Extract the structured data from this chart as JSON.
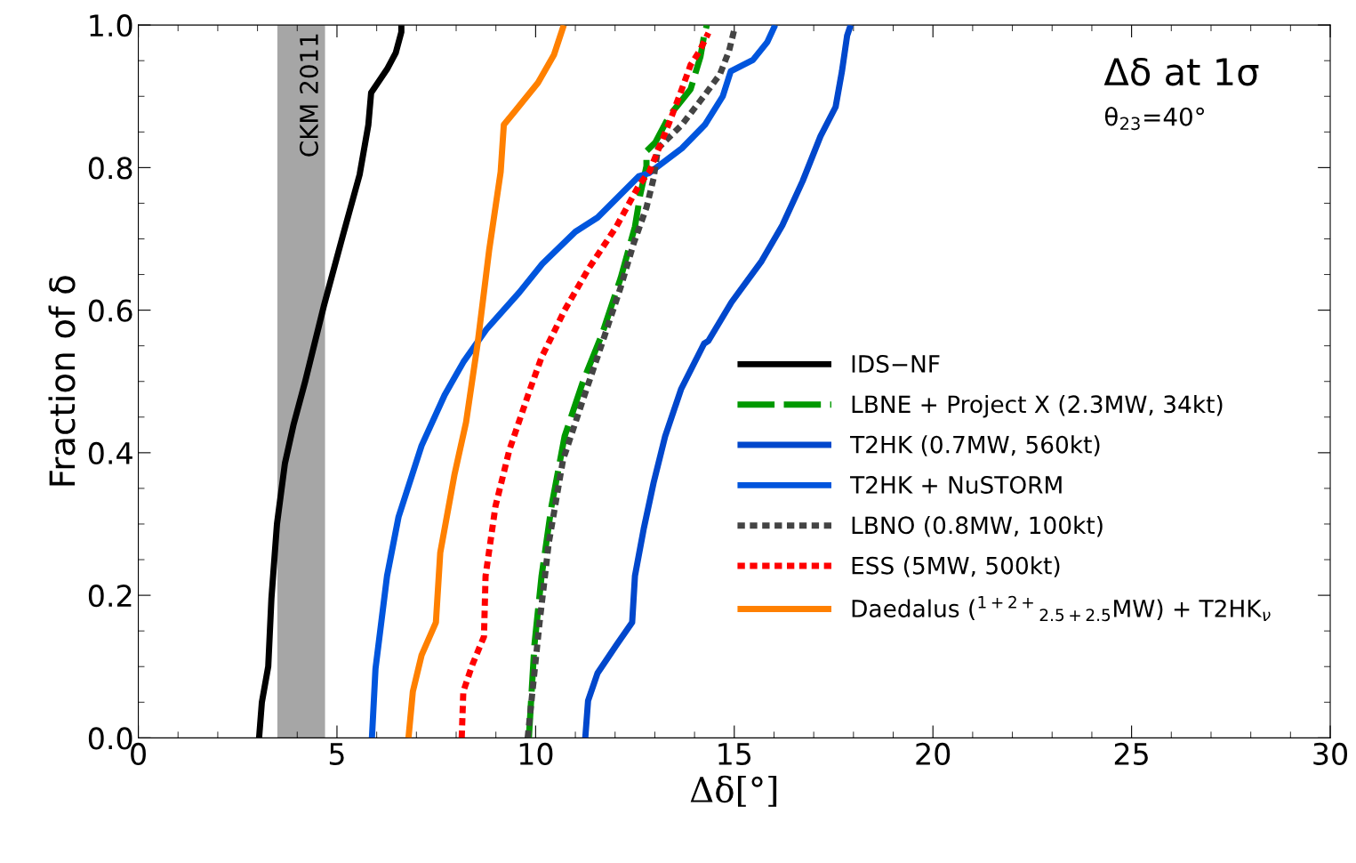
{
  "chart_data": {
    "type": "line",
    "xlabel": "Δδ[°]",
    "ylabel": "Fraction of δ",
    "annotations": [
      "Δδ at 1σ",
      "θ$_{23}$=40°"
    ],
    "xlim": [
      0,
      30
    ],
    "ylim": [
      0,
      1
    ],
    "xticks": [
      0,
      5,
      10,
      15,
      20,
      25,
      30
    ],
    "yticks": [
      {
        "value": 0,
        "label": "0.0"
      },
      {
        "value": 0.2,
        "label": "0.2"
      },
      {
        "value": 0.4,
        "label": "0.4"
      },
      {
        "value": 0.6,
        "label": "0.6"
      },
      {
        "value": 0.8,
        "label": "0.8"
      },
      {
        "value": 1,
        "label": "1.0"
      }
    ],
    "grid": false,
    "legend": "right",
    "marker": "none",
    "bands": [
      {
        "axis": "x",
        "from": 3.5,
        "to": 4.7,
        "label": "CKM 2011",
        "color": "#a6a6a6"
      }
    ],
    "series": [
      {
        "name": "IDS−NF",
        "color": "#000000",
        "line_style": "solid",
        "x": [
          3.04,
          3.11,
          3.27,
          3.35,
          3.49,
          3.69,
          3.91,
          4.2,
          4.67,
          5.14,
          5.57,
          5.79,
          5.86,
          6.26,
          6.48,
          6.62,
          6.62
        ],
        "values": [
          0,
          0.05,
          0.1,
          0.195,
          0.3,
          0.385,
          0.44,
          0.5,
          0.606,
          0.703,
          0.79,
          0.86,
          0.905,
          0.938,
          0.961,
          0.99,
          1.0
        ]
      },
      {
        "name": "LBNE + Project X (2.3MW, 34kt)",
        "color": "#009900",
        "line_style": "dashed",
        "x": [
          9.83,
          9.97,
          10.15,
          10.4,
          10.73,
          11.2,
          11.67,
          12.14,
          12.5,
          12.63,
          12.79,
          12.79,
          13.01,
          13.37,
          13.9,
          14.15,
          14.24,
          14.31
        ],
        "values": [
          0,
          0.13,
          0.227,
          0.325,
          0.423,
          0.501,
          0.566,
          0.645,
          0.717,
          0.761,
          0.802,
          0.823,
          0.835,
          0.873,
          0.91,
          0.956,
          0.985,
          1.0
        ]
      },
      {
        "name": "T2HK (0.7MW, 560kt)",
        "color": "#0047cc",
        "line_style": "solid",
        "x": [
          11.25,
          11.32,
          11.56,
          12.03,
          12.43,
          12.5,
          12.72,
          12.97,
          13.26,
          13.66,
          14.24,
          14.35,
          14.93,
          15.69,
          16.21,
          16.72,
          17.17,
          17.55,
          17.71,
          17.84,
          17.93
        ],
        "values": [
          0,
          0.052,
          0.091,
          0.13,
          0.162,
          0.227,
          0.293,
          0.358,
          0.423,
          0.489,
          0.553,
          0.557,
          0.611,
          0.669,
          0.719,
          0.781,
          0.844,
          0.885,
          0.935,
          0.985,
          1.0
        ]
      },
      {
        "name": "T2HK + NuSTORM",
        "color": "#0055dd",
        "line_style": "solid",
        "x": [
          5.88,
          5.97,
          6.26,
          6.55,
          7.13,
          7.71,
          8.18,
          8.76,
          9.59,
          10.17,
          11.0,
          11.56,
          12.6,
          12.85,
          13.68,
          14.26,
          14.71,
          14.91,
          15.47,
          15.83,
          16.03
        ],
        "values": [
          0,
          0.097,
          0.227,
          0.31,
          0.41,
          0.481,
          0.527,
          0.573,
          0.625,
          0.665,
          0.71,
          0.73,
          0.788,
          0.792,
          0.827,
          0.86,
          0.9,
          0.935,
          0.951,
          0.976,
          1.0
        ]
      },
      {
        "name": "LBNO (0.8MW, 100kt)",
        "color": "#444444",
        "line_style": "dotted",
        "x": [
          9.8,
          10.1,
          10.33,
          10.69,
          11.16,
          11.67,
          12.14,
          12.47,
          12.79,
          12.97,
          13.08,
          13.68,
          14.26,
          14.64,
          14.87,
          15.02
        ],
        "values": [
          0,
          0.162,
          0.273,
          0.39,
          0.469,
          0.553,
          0.632,
          0.694,
          0.744,
          0.785,
          0.827,
          0.86,
          0.902,
          0.931,
          0.964,
          0.998
        ]
      },
      {
        "name": "ESS (5MW, 500kt)",
        "color": "#ff0000",
        "line_style": "dotted",
        "x": [
          8.14,
          8.18,
          8.41,
          8.7,
          8.74,
          8.99,
          9.34,
          9.86,
          10.15,
          10.73,
          11.33,
          12.03,
          12.61,
          12.86,
          13.37,
          13.68,
          13.9,
          14.13,
          14.35
        ],
        "values": [
          0,
          0.065,
          0.103,
          0.142,
          0.227,
          0.325,
          0.404,
          0.489,
          0.534,
          0.6,
          0.658,
          0.717,
          0.776,
          0.794,
          0.864,
          0.91,
          0.944,
          0.964,
          0.989
        ]
      },
      {
        "name": "Daedalus ($^{1+2+}$$_{2.5+2.5}$MW) + T2HK$_{ν}$",
        "color": "#ff8000",
        "line_style": "solid",
        "x": [
          6.8,
          6.91,
          7.13,
          7.49,
          7.6,
          7.96,
          8.25,
          8.54,
          8.83,
          9.12,
          9.2,
          9.48,
          10.06,
          10.46,
          10.71
        ],
        "values": [
          0,
          0.065,
          0.116,
          0.162,
          0.26,
          0.37,
          0.443,
          0.553,
          0.684,
          0.794,
          0.86,
          0.879,
          0.919,
          0.958,
          1.0
        ]
      }
    ]
  }
}
